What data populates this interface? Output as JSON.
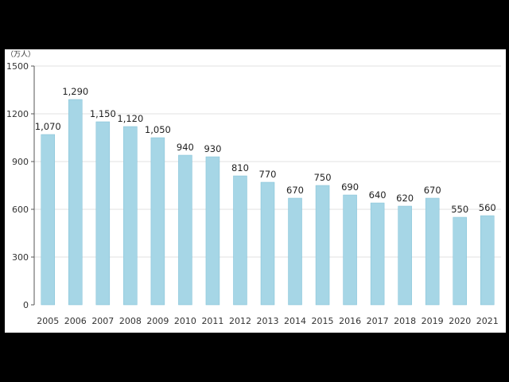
{
  "chart_data": {
    "type": "bar",
    "unit_label": "（万人）",
    "categories": [
      "2005",
      "2006",
      "2007",
      "2008",
      "2009",
      "2010",
      "2011",
      "2012",
      "2013",
      "2014",
      "2015",
      "2016",
      "2017",
      "2018",
      "2019",
      "2020",
      "2021"
    ],
    "values": [
      1070,
      1290,
      1150,
      1120,
      1050,
      940,
      930,
      810,
      770,
      670,
      750,
      690,
      640,
      620,
      670,
      550,
      560
    ],
    "value_labels": [
      "1,070",
      "1,290",
      "1,150",
      "1,120",
      "1,050",
      "940",
      "930",
      "810",
      "770",
      "670",
      "750",
      "690",
      "640",
      "620",
      "670",
      "550",
      "560"
    ],
    "ylim": [
      0,
      1500
    ],
    "yticks": [
      0,
      300,
      600,
      900,
      1200,
      1500
    ],
    "ytick_labels": [
      "0",
      "300",
      "600",
      "900",
      "1200",
      "1500"
    ],
    "grid": true,
    "bar_color": "#a6d6e6",
    "bar_edge_color": "#7fbfd6",
    "grid_color": "#e2e2e2",
    "axis_color": "#555555"
  }
}
